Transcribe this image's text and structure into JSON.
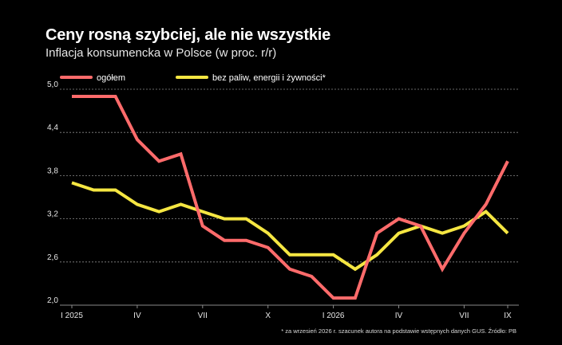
{
  "header": {
    "title": "Ceny rosną szybciej, ale nie wszystkie",
    "subtitle": "Inflacja konsumencka w Polsce (w proc. r/r)"
  },
  "footnote": "* za wrzesień 2026 r. szacunek autora na podstawie wstępnych danych GUS. Źródło: PB",
  "colors": {
    "background": "#000000",
    "ogolem": "#ff6b6b",
    "bazowa": "#f5e642",
    "grid": "#8a8a8a",
    "text": "#e6e6e6"
  },
  "chart_data": {
    "type": "line",
    "x_tick_labels": [
      "I 2025",
      "IV",
      "VII",
      "X",
      "I 2026",
      "IV",
      "VII",
      "IX"
    ],
    "x_tick_index": [
      0,
      3,
      6,
      9,
      12,
      15,
      18,
      20
    ],
    "y_ticks": [
      "5,0",
      "4,4",
      "3,8",
      "3,2",
      "2,6",
      "2,0"
    ],
    "y_tick_values": [
      5.0,
      4.4,
      3.8,
      3.2,
      2.6,
      2.0
    ],
    "ylim": [
      2.0,
      5.0
    ],
    "grid": true,
    "legend_position": "top",
    "series": [
      {
        "name": "ogółem",
        "color": "#ff6b6b",
        "values": [
          4.9,
          4.9,
          4.9,
          4.3,
          4.0,
          4.1,
          3.1,
          2.9,
          2.9,
          2.8,
          2.5,
          2.4,
          2.1,
          2.1,
          3.0,
          3.2,
          3.1,
          2.5,
          3.0,
          3.4,
          4.0
        ]
      },
      {
        "name": "bez paliw, energii i żywności*",
        "color": "#f5e642",
        "values": [
          3.7,
          3.6,
          3.6,
          3.4,
          3.3,
          3.4,
          3.3,
          3.2,
          3.2,
          3.0,
          2.7,
          2.7,
          2.7,
          2.5,
          2.7,
          3.0,
          3.1,
          3.0,
          3.1,
          3.3,
          3.0
        ]
      }
    ]
  }
}
